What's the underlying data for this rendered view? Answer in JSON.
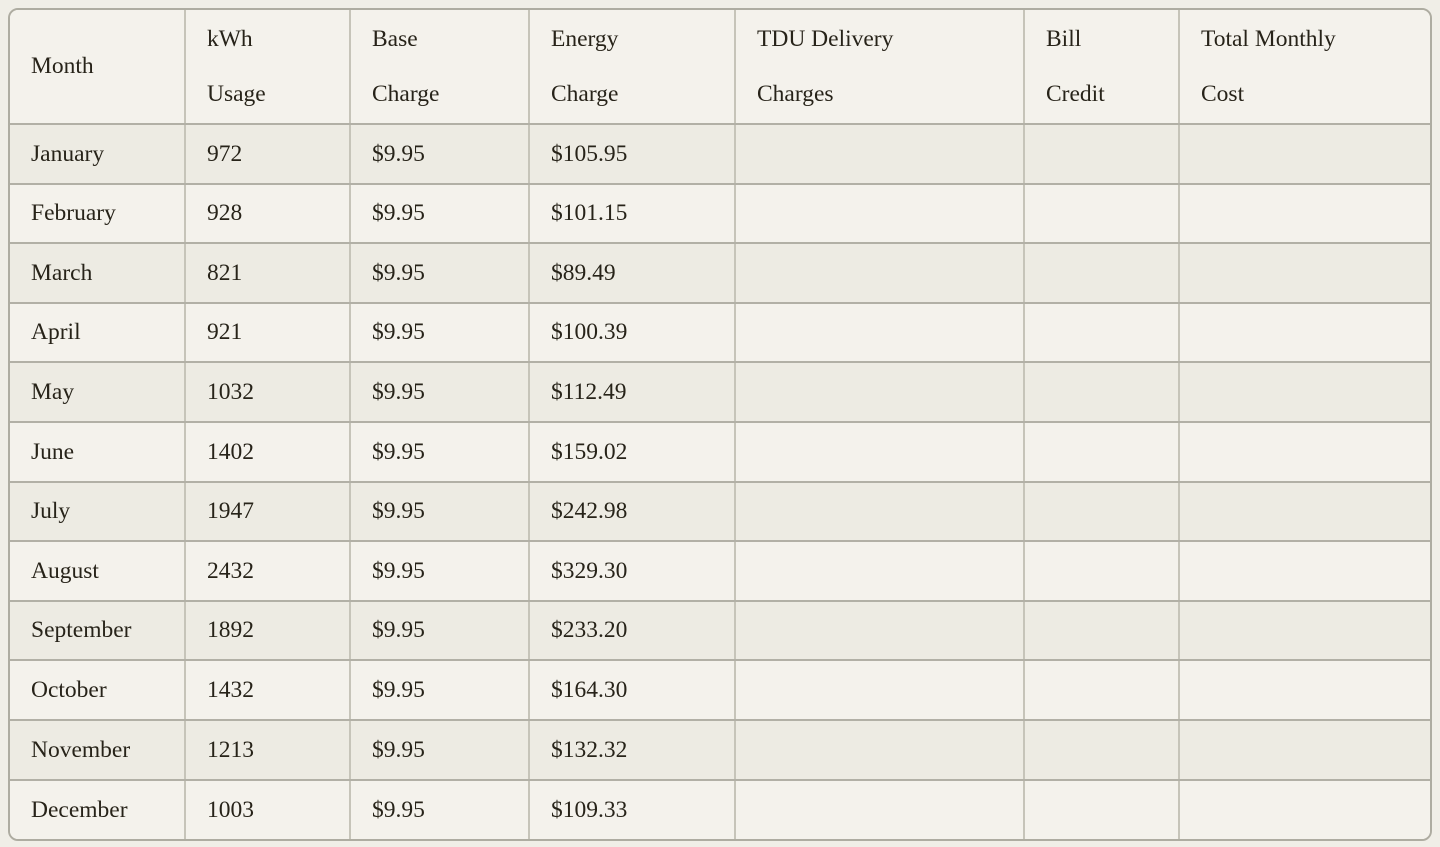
{
  "table": {
    "title_semantic": "monthly-electricity-billing-table",
    "columns": [
      "Month",
      "kWh\nUsage",
      "Base\nCharge",
      "Energy\nCharge",
      "TDU Delivery\nCharges",
      "Bill\nCredit",
      "Total Monthly\nCost"
    ],
    "rows": [
      [
        "January",
        "972",
        "$9.95",
        "$105.95",
        "",
        "",
        ""
      ],
      [
        "February",
        "928",
        "$9.95",
        "$101.15",
        "",
        "",
        ""
      ],
      [
        "March",
        "821",
        "$9.95",
        "$89.49",
        "",
        "",
        ""
      ],
      [
        "April",
        "921",
        "$9.95",
        "$100.39",
        "",
        "",
        ""
      ],
      [
        "May",
        "1032",
        "$9.95",
        "$112.49",
        "",
        "",
        ""
      ],
      [
        "June",
        "1402",
        "$9.95",
        "$159.02",
        "",
        "",
        ""
      ],
      [
        "July",
        "1947",
        "$9.95",
        "$242.98",
        "",
        "",
        ""
      ],
      [
        "August",
        "2432",
        "$9.95",
        "$329.30",
        "",
        "",
        ""
      ],
      [
        "September",
        "1892",
        "$9.95",
        "$233.20",
        "",
        "",
        ""
      ],
      [
        "October",
        "1432",
        "$9.95",
        "$164.30",
        "",
        "",
        ""
      ],
      [
        "November",
        "1213",
        "$9.95",
        "$132.32",
        "",
        "",
        ""
      ],
      [
        "December",
        "1003",
        "$9.95",
        "$109.33",
        "",
        "",
        ""
      ]
    ],
    "colors": {
      "page_background": "#f0eee7",
      "row_light": "#f4f2ec",
      "row_dark": "#edebe3",
      "border_outer": "#aeaca1",
      "border_horizontal": "#b2b0a6",
      "border_vertical": "#c6c4b9",
      "text": "#272319"
    }
  }
}
